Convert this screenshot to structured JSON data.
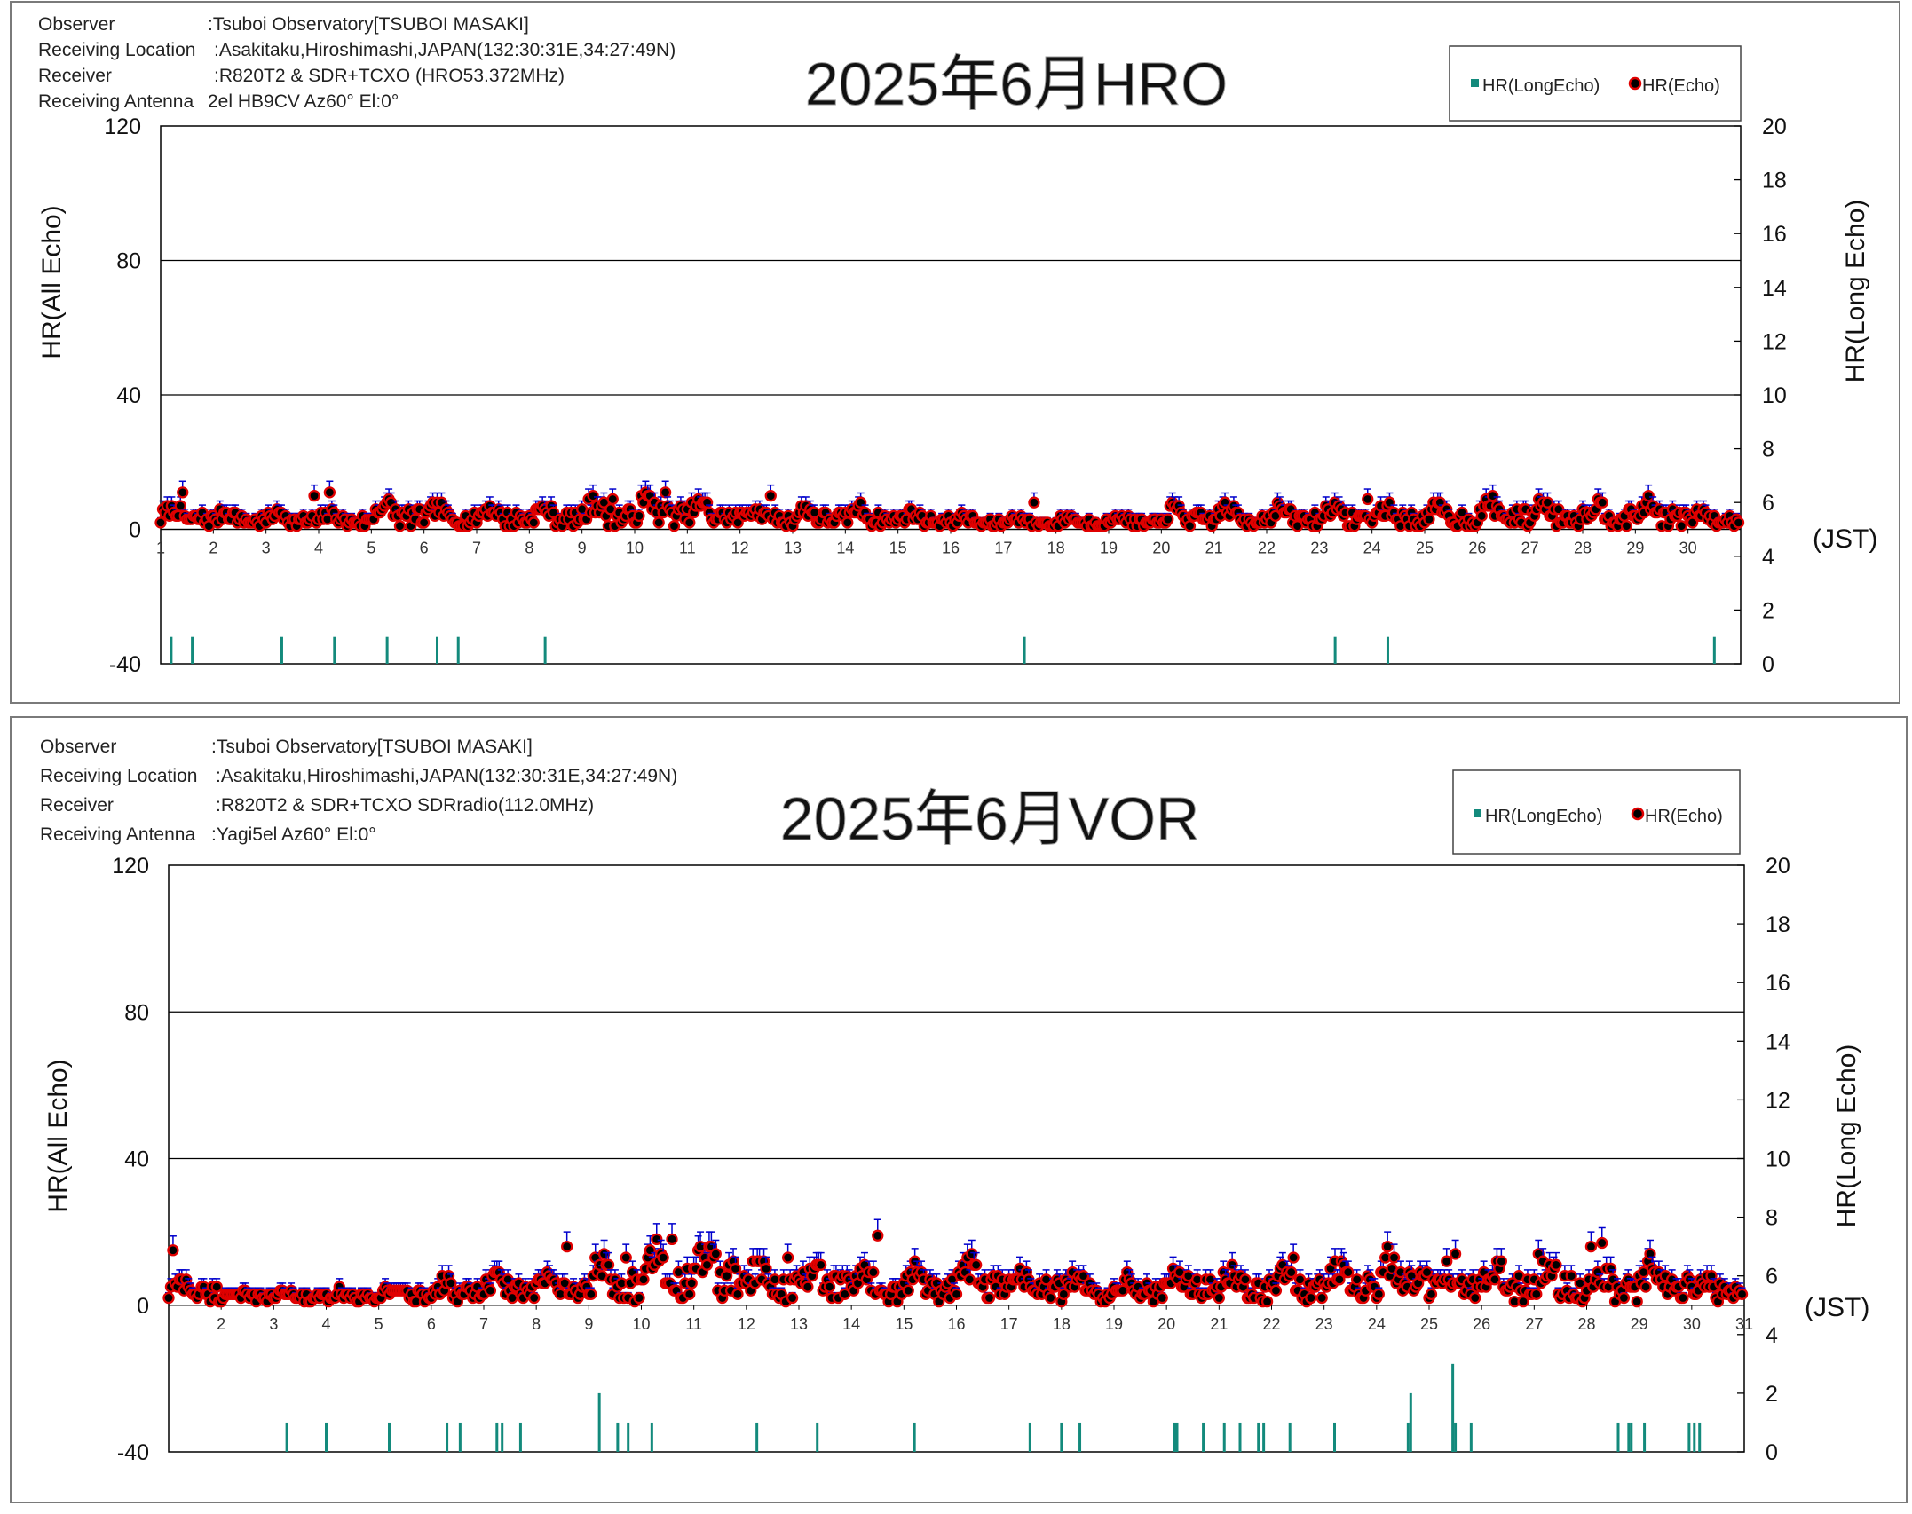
{
  "panels": [
    {
      "observer_label": "Observer",
      "observer_value": ":Tsuboi Observatory[TSUBOI MASAKI]",
      "location_label": "Receiving Location",
      "location_value": ":Asakitaku,Hiroshimashi,JAPAN(132:30:31E,34:27:49N)",
      "receiver_label": "Receiver",
      "receiver_value": ":R820T2 & SDR+TCXO (HRO53.372MHz)",
      "antenna_label": "Receiving Antenna",
      "antenna_value": "2el HB9CV Az60° El:0°",
      "title": "2025年6月HRO",
      "legend_long": "HR(LongEcho)",
      "legend_echo": "HR(Echo)",
      "ylabel_left": "HR(All Echo)",
      "ylabel_right": "HR(Long Echo)",
      "x_unit": "(JST)"
    },
    {
      "observer_label": "Observer",
      "observer_value": ":Tsuboi Observatory[TSUBOI MASAKI]",
      "location_label": "Receiving Location",
      "location_value": ":Asakitaku,Hiroshimashi,JAPAN(132:30:31E,34:27:49N)",
      "receiver_label": "Receiver",
      "receiver_value": ":R820T2 & SDR+TCXO SDRradio(112.0MHz)",
      "antenna_label": "Receiving Antenna",
      "antenna_value": ":Yagi5el  Az60°  El:0°",
      "title": "2025年6月VOR",
      "legend_long": "HR(LongEcho)",
      "legend_echo": "HR(Echo)",
      "ylabel_left": "HR(All Echo)",
      "ylabel_right": "HR(Long Echo)",
      "x_unit": "(JST)"
    }
  ],
  "chart_data": [
    {
      "type": "scatter",
      "title": "2025年6月HRO",
      "ylabel": "HR(All Echo)",
      "y2label": "HR(Long Echo)",
      "xlabel": "(JST)",
      "ylim": [
        -40,
        120
      ],
      "y2lim": [
        0,
        20
      ],
      "yticks": [
        -40,
        0,
        40,
        80,
        120
      ],
      "y2ticks": [
        0,
        2,
        4,
        6,
        8,
        10,
        12,
        14,
        16,
        18,
        20
      ],
      "xlim": [
        1,
        31
      ],
      "xticks": [
        "1",
        "2",
        "3",
        "4",
        "5",
        "6",
        "7",
        "8",
        "9",
        "10",
        "11",
        "12",
        "13",
        "14",
        "15",
        "16",
        "17",
        "18",
        "19",
        "20",
        "21",
        "22",
        "23",
        "24",
        "25",
        "26",
        "27",
        "28",
        "29",
        "30"
      ],
      "grid": "horizontal",
      "legend_position": "top-right",
      "colors": {
        "echo_fill": "#000000",
        "echo_edge": "#e00000",
        "error_bar": "#0000cc",
        "long_echo": "#138a7c",
        "grid": "#000000"
      },
      "series": [
        {
          "name": "HR(Echo)",
          "kind": "hourly_points",
          "day_levels": [
            5,
            4,
            4,
            4,
            6,
            5,
            5,
            5,
            6,
            7,
            6,
            5,
            5,
            5,
            4,
            3,
            3,
            3,
            3,
            5,
            5,
            5,
            5,
            5,
            5,
            6,
            6,
            6,
            6,
            4
          ],
          "peaks": [
            [
              1.4,
              11
            ],
            [
              3.9,
              10
            ],
            [
              4.2,
              11
            ],
            [
              9.2,
              10
            ],
            [
              9.6,
              9
            ],
            [
              10.2,
              11
            ],
            [
              10.6,
              11
            ],
            [
              12.6,
              10
            ],
            [
              23.3,
              8
            ],
            [
              23.9,
              9
            ],
            [
              27.2,
              7
            ],
            [
              28.0,
              6
            ],
            [
              17.6,
              8
            ],
            [
              21.2,
              8
            ]
          ]
        },
        {
          "name": "HR(LongEcho)",
          "kind": "bars",
          "axis": "right",
          "x": [
            1.2,
            1.6,
            3.3,
            4.3,
            5.3,
            6.25,
            6.65,
            8.3,
            17.4,
            23.3,
            24.3,
            30.5
          ],
          "values": [
            1,
            1,
            1,
            1,
            1,
            1,
            1,
            1,
            1,
            1,
            1,
            1
          ]
        }
      ]
    },
    {
      "type": "scatter",
      "title": "2025年6月VOR",
      "ylabel": "HR(All Echo)",
      "y2label": "HR(Long Echo)",
      "xlabel": "(JST)",
      "ylim": [
        -40,
        120
      ],
      "y2lim": [
        0,
        20
      ],
      "yticks": [
        -40,
        0,
        40,
        80,
        120
      ],
      "y2ticks": [
        0,
        2,
        4,
        6,
        8,
        10,
        12,
        14,
        16,
        18,
        20
      ],
      "xlim": [
        1,
        31
      ],
      "xticks": [
        "2",
        "3",
        "4",
        "5",
        "6",
        "7",
        "8",
        "9",
        "10",
        "11",
        "12",
        "13",
        "14",
        "15",
        "16",
        "17",
        "18",
        "19",
        "20",
        "21",
        "22",
        "23",
        "24",
        "25",
        "26",
        "27",
        "28",
        "29",
        "30",
        "31"
      ],
      "grid": "horizontal",
      "legend_position": "top-right",
      "colors": {
        "echo_fill": "#000000",
        "echo_edge": "#e00000",
        "error_bar": "#0000cc",
        "long_echo": "#138a7c",
        "grid": "#000000"
      },
      "series": [
        {
          "name": "HR(Echo)",
          "kind": "hourly_points",
          "day_levels": [
            5,
            3,
            3,
            3,
            4,
            5,
            6,
            6,
            9,
            10,
            11,
            8,
            8,
            7,
            7,
            8,
            7,
            6,
            6,
            7,
            7,
            7,
            8,
            9,
            8,
            8,
            8,
            8,
            8,
            6
          ],
          "peaks": [
            [
              1.1,
              15
            ],
            [
              8.6,
              16
            ],
            [
              9.7,
              13
            ],
            [
              10.3,
              18
            ],
            [
              10.6,
              18
            ],
            [
              11.3,
              16
            ],
            [
              12.8,
              13
            ],
            [
              14.5,
              19
            ],
            [
              15.2,
              12
            ],
            [
              16.3,
              14
            ],
            [
              22.4,
              13
            ],
            [
              24.2,
              16
            ],
            [
              25.5,
              14
            ],
            [
              27.1,
              14
            ],
            [
              28.1,
              16
            ],
            [
              28.3,
              17
            ],
            [
              29.2,
              14
            ]
          ]
        },
        {
          "name": "HR(LongEcho)",
          "kind": "bars",
          "axis": "right",
          "x": [
            3.25,
            4.0,
            5.2,
            6.3,
            6.55,
            7.25,
            7.35,
            7.7,
            9.2,
            9.55,
            9.75,
            10.2,
            12.2,
            13.35,
            15.2,
            17.4,
            18.0,
            18.35,
            20.15,
            20.2,
            20.7,
            21.1,
            21.4,
            21.75,
            21.85,
            22.35,
            23.2,
            24.6,
            24.65,
            25.45,
            25.5,
            25.8,
            28.6,
            28.8,
            28.85,
            29.1,
            29.95,
            30.05,
            30.15
          ],
          "values": [
            1,
            1,
            1,
            1,
            1,
            1,
            1,
            1,
            2,
            1,
            1,
            1,
            1,
            1,
            1,
            1,
            1,
            1,
            1,
            1,
            1,
            1,
            1,
            1,
            1,
            1,
            1,
            1,
            2,
            3,
            1,
            1,
            1,
            1,
            1,
            1,
            1,
            1,
            1
          ]
        }
      ]
    }
  ]
}
